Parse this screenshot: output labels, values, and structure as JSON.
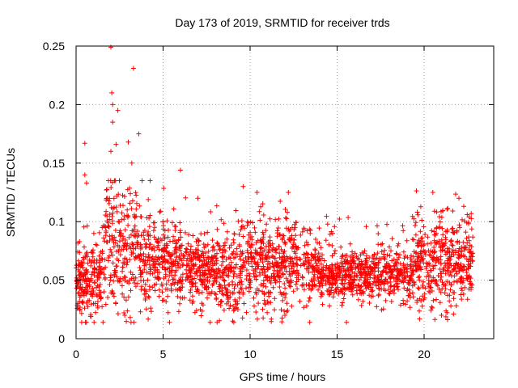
{
  "chart_data": {
    "type": "scatter",
    "title": "Day 173 of 2019, SRMTID for receiver trds",
    "xlabel": "GPS time / hours",
    "ylabel": "SRMTID / TECUs",
    "xlim": [
      0,
      24
    ],
    "ylim": [
      0,
      0.25
    ],
    "xticks": [
      0,
      5,
      10,
      15,
      20
    ],
    "yticks": [
      0,
      0.05,
      0.1,
      0.15,
      0.2,
      0.25
    ],
    "xtick_labels": [
      "0",
      "5",
      "10",
      "15",
      "20"
    ],
    "ytick_labels": [
      "0",
      "0.05",
      "0.1",
      "0.15",
      "0.2",
      "0.25"
    ],
    "grid": true,
    "marker": "+",
    "series_color": "#ff0000",
    "time_range_hours": [
      0,
      22.8
    ],
    "approx_point_count": 2700,
    "representative_points": [
      {
        "x": 0.1,
        "y": 0.03
      },
      {
        "x": 0.3,
        "y": 0.065
      },
      {
        "x": 0.5,
        "y": 0.167
      },
      {
        "x": 0.5,
        "y": 0.14
      },
      {
        "x": 0.6,
        "y": 0.133
      },
      {
        "x": 1.0,
        "y": 0.03
      },
      {
        "x": 1.2,
        "y": 0.08
      },
      {
        "x": 1.5,
        "y": 0.095
      },
      {
        "x": 1.8,
        "y": 0.12
      },
      {
        "x": 2.0,
        "y": 0.16
      },
      {
        "x": 2.0,
        "y": 0.249
      },
      {
        "x": 2.05,
        "y": 0.21
      },
      {
        "x": 2.1,
        "y": 0.2
      },
      {
        "x": 2.1,
        "y": 0.185
      },
      {
        "x": 2.3,
        "y": 0.166
      },
      {
        "x": 2.4,
        "y": 0.195
      },
      {
        "x": 2.6,
        "y": 0.09
      },
      {
        "x": 2.8,
        "y": 0.02
      },
      {
        "x": 3.0,
        "y": 0.168
      },
      {
        "x": 3.2,
        "y": 0.15
      },
      {
        "x": 3.3,
        "y": 0.231
      },
      {
        "x": 3.6,
        "y": 0.175
      },
      {
        "x": 4.0,
        "y": 0.07
      },
      {
        "x": 5.0,
        "y": 0.1
      },
      {
        "x": 6.0,
        "y": 0.144
      },
      {
        "x": 7.0,
        "y": 0.12
      },
      {
        "x": 8.0,
        "y": 0.05
      },
      {
        "x": 9.0,
        "y": 0.015
      },
      {
        "x": 9.6,
        "y": 0.13
      },
      {
        "x": 10.4,
        "y": 0.125
      },
      {
        "x": 12.2,
        "y": 0.125
      },
      {
        "x": 12.0,
        "y": 0.02
      },
      {
        "x": 14.0,
        "y": 0.07
      },
      {
        "x": 15.0,
        "y": 0.05
      },
      {
        "x": 18.0,
        "y": 0.06
      },
      {
        "x": 20.5,
        "y": 0.125
      },
      {
        "x": 21.0,
        "y": 0.02
      },
      {
        "x": 22.0,
        "y": 0.12
      },
      {
        "x": 22.7,
        "y": 0.07
      }
    ]
  }
}
